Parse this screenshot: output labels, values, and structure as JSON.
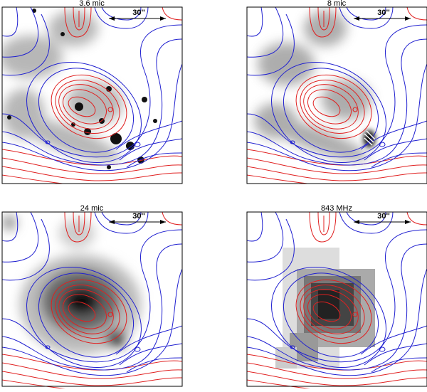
{
  "panels": [
    {
      "title": "3.6 mic",
      "scale_label": "30''"
    },
    {
      "title": "8 mic",
      "scale_label": "30''"
    },
    {
      "title": "24 mic",
      "scale_label": "30''"
    },
    {
      "title": "843 MHz",
      "scale_label": "30''"
    }
  ]
}
